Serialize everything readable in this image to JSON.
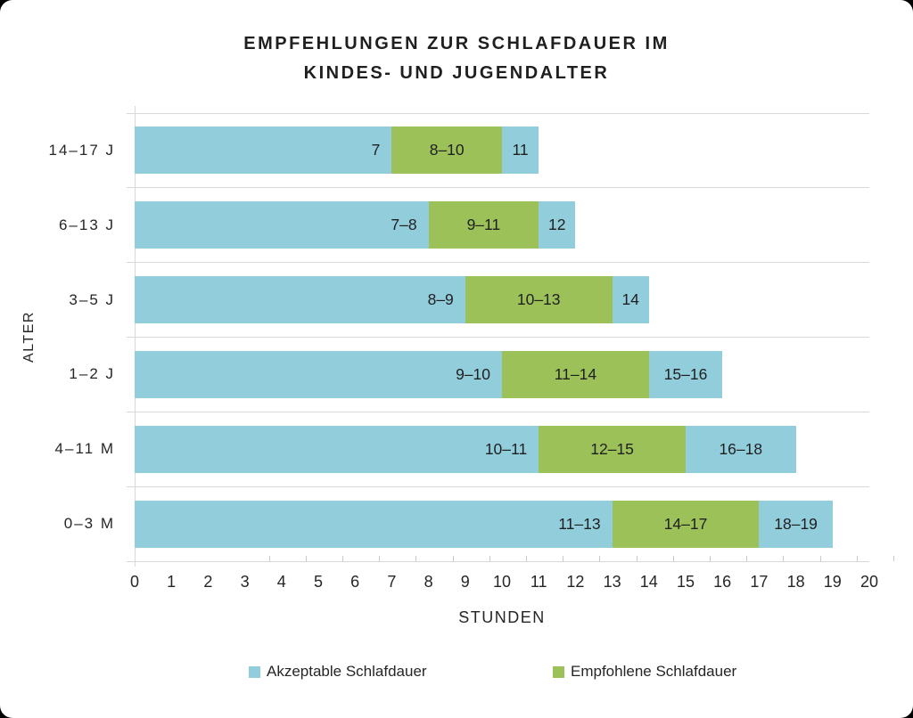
{
  "chart_data": {
    "type": "bar",
    "orientation": "horizontal",
    "stacked": true,
    "title": "EMPFEHLUNGEN ZUR SCHLAFDAUER IM KINDES- UND JUGENDALTER",
    "title_lines": [
      "EMPFEHLUNGEN ZUR SCHLAFDAUER IM",
      "KINDES- UND JUGENDALTER"
    ],
    "xlabel": "STUNDEN",
    "ylabel": "ALTER",
    "xlim": [
      0,
      20
    ],
    "xticks": [
      0,
      1,
      2,
      3,
      4,
      5,
      6,
      7,
      8,
      9,
      10,
      11,
      12,
      13,
      14,
      15,
      16,
      17,
      18,
      19,
      20
    ],
    "grid": "category-separator-lines",
    "legend_position": "bottom",
    "colors": {
      "acceptable": "#92CDDC",
      "recommended": "#9CC158",
      "gridline": "#D9D9D9",
      "tick": "#C9C9C9",
      "text": "#262626"
    },
    "legend": [
      {
        "label": "Akzeptable Schlafdauer",
        "series": "acceptable"
      },
      {
        "label": "Empfohlene Schlafdauer",
        "series": "recommended"
      }
    ],
    "categories": [
      "14–17 J",
      "6–13 J",
      "3–5 J",
      "1–2 J",
      "4–11 M",
      "0–3 M"
    ],
    "rows": [
      {
        "category": "14–17 J",
        "segments": [
          {
            "series": "acceptable",
            "from": 0,
            "to": 7,
            "label": "7"
          },
          {
            "series": "recommended",
            "from": 7,
            "to": 10,
            "label": "8–10"
          },
          {
            "series": "acceptable",
            "from": 10,
            "to": 11,
            "label": "11"
          }
        ]
      },
      {
        "category": "6–13 J",
        "segments": [
          {
            "series": "acceptable",
            "from": 0,
            "to": 8,
            "label": "7–8"
          },
          {
            "series": "recommended",
            "from": 8,
            "to": 11,
            "label": "9–11"
          },
          {
            "series": "acceptable",
            "from": 11,
            "to": 12,
            "label": "12"
          }
        ]
      },
      {
        "category": "3–5 J",
        "segments": [
          {
            "series": "acceptable",
            "from": 0,
            "to": 9,
            "label": "8–9"
          },
          {
            "series": "recommended",
            "from": 9,
            "to": 13,
            "label": "10–13"
          },
          {
            "series": "acceptable",
            "from": 13,
            "to": 14,
            "label": "14"
          }
        ]
      },
      {
        "category": "1–2 J",
        "segments": [
          {
            "series": "acceptable",
            "from": 0,
            "to": 10,
            "label": "9–10"
          },
          {
            "series": "recommended",
            "from": 10,
            "to": 14,
            "label": "11–14"
          },
          {
            "series": "acceptable",
            "from": 14,
            "to": 16,
            "label": "15–16"
          }
        ]
      },
      {
        "category": "4–11 M",
        "segments": [
          {
            "series": "acceptable",
            "from": 0,
            "to": 11,
            "label": "10–11"
          },
          {
            "series": "recommended",
            "from": 11,
            "to": 15,
            "label": "12–15"
          },
          {
            "series": "acceptable",
            "from": 15,
            "to": 18,
            "label": "16–18"
          }
        ]
      },
      {
        "category": "0–3 M",
        "segments": [
          {
            "series": "acceptable",
            "from": 0,
            "to": 13,
            "label": "11–13"
          },
          {
            "series": "recommended",
            "from": 13,
            "to": 17,
            "label": "14–17"
          },
          {
            "series": "acceptable",
            "from": 17,
            "to": 19,
            "label": "18–19"
          }
        ]
      }
    ]
  }
}
